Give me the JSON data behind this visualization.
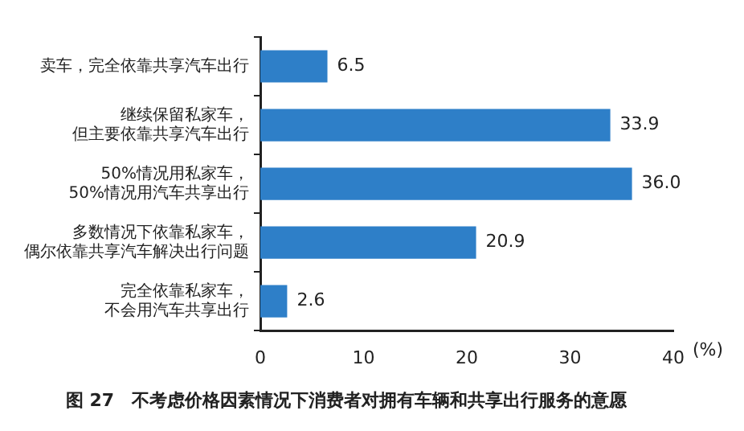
{
  "chart_data": {
    "type": "bar",
    "orientation": "horizontal",
    "title": "图 27　不考虑价格因素情况下消费者对拥有车辆和共享出行服务的意愿",
    "xlabel": "(%)",
    "categories": [
      "卖车，完全依靠共享汽车出行",
      "继续保留私家车，但主要依靠共享汽车出行",
      "50%情况用私家车，50%情况用汽车共享出行",
      "多数情况下依靠私家车，偶尔依靠共享汽车解决出行问题",
      "完全依靠私家车，不会用汽车共享出行"
    ],
    "values": [
      6.5,
      33.9,
      36.0,
      20.9,
      2.6
    ],
    "value_labels": [
      "6.5",
      "33.9",
      "36.0",
      "20.9",
      "2.6"
    ],
    "color": "#2e7fc8",
    "xlim": [
      0,
      40
    ],
    "xticks": [
      0,
      10,
      20,
      30,
      40
    ],
    "grid": false,
    "legend": false
  }
}
